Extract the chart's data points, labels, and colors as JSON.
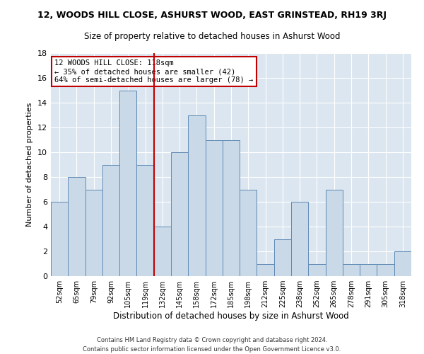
{
  "title": "12, WOODS HILL CLOSE, ASHURST WOOD, EAST GRINSTEAD, RH19 3RJ",
  "subtitle": "Size of property relative to detached houses in Ashurst Wood",
  "xlabel": "Distribution of detached houses by size in Ashurst Wood",
  "ylabel": "Number of detached properties",
  "footer1": "Contains HM Land Registry data © Crown copyright and database right 2024.",
  "footer2": "Contains public sector information licensed under the Open Government Licence v3.0.",
  "categories": [
    "52sqm",
    "65sqm",
    "79sqm",
    "92sqm",
    "105sqm",
    "119sqm",
    "132sqm",
    "145sqm",
    "158sqm",
    "172sqm",
    "185sqm",
    "198sqm",
    "212sqm",
    "225sqm",
    "238sqm",
    "252sqm",
    "265sqm",
    "278sqm",
    "291sqm",
    "305sqm",
    "318sqm"
  ],
  "values": [
    6,
    8,
    7,
    9,
    15,
    9,
    4,
    10,
    13,
    11,
    11,
    7,
    1,
    3,
    6,
    1,
    7,
    1,
    1,
    1,
    2
  ],
  "bar_color": "#c9d9e8",
  "bar_edge_color": "#5f8ab5",
  "highlight_index": 5,
  "highlight_color": "#c00000",
  "annotation_title": "12 WOODS HILL CLOSE: 118sqm",
  "annotation_line1": "← 35% of detached houses are smaller (42)",
  "annotation_line2": "64% of semi-detached houses are larger (78) →",
  "annotation_box_color": "#ffffff",
  "annotation_box_edge": "#c00000",
  "ylim": [
    0,
    18
  ],
  "yticks": [
    0,
    2,
    4,
    6,
    8,
    10,
    12,
    14,
    16,
    18
  ],
  "bg_color": "#dce6f0",
  "fig_bg_color": "#ffffff"
}
